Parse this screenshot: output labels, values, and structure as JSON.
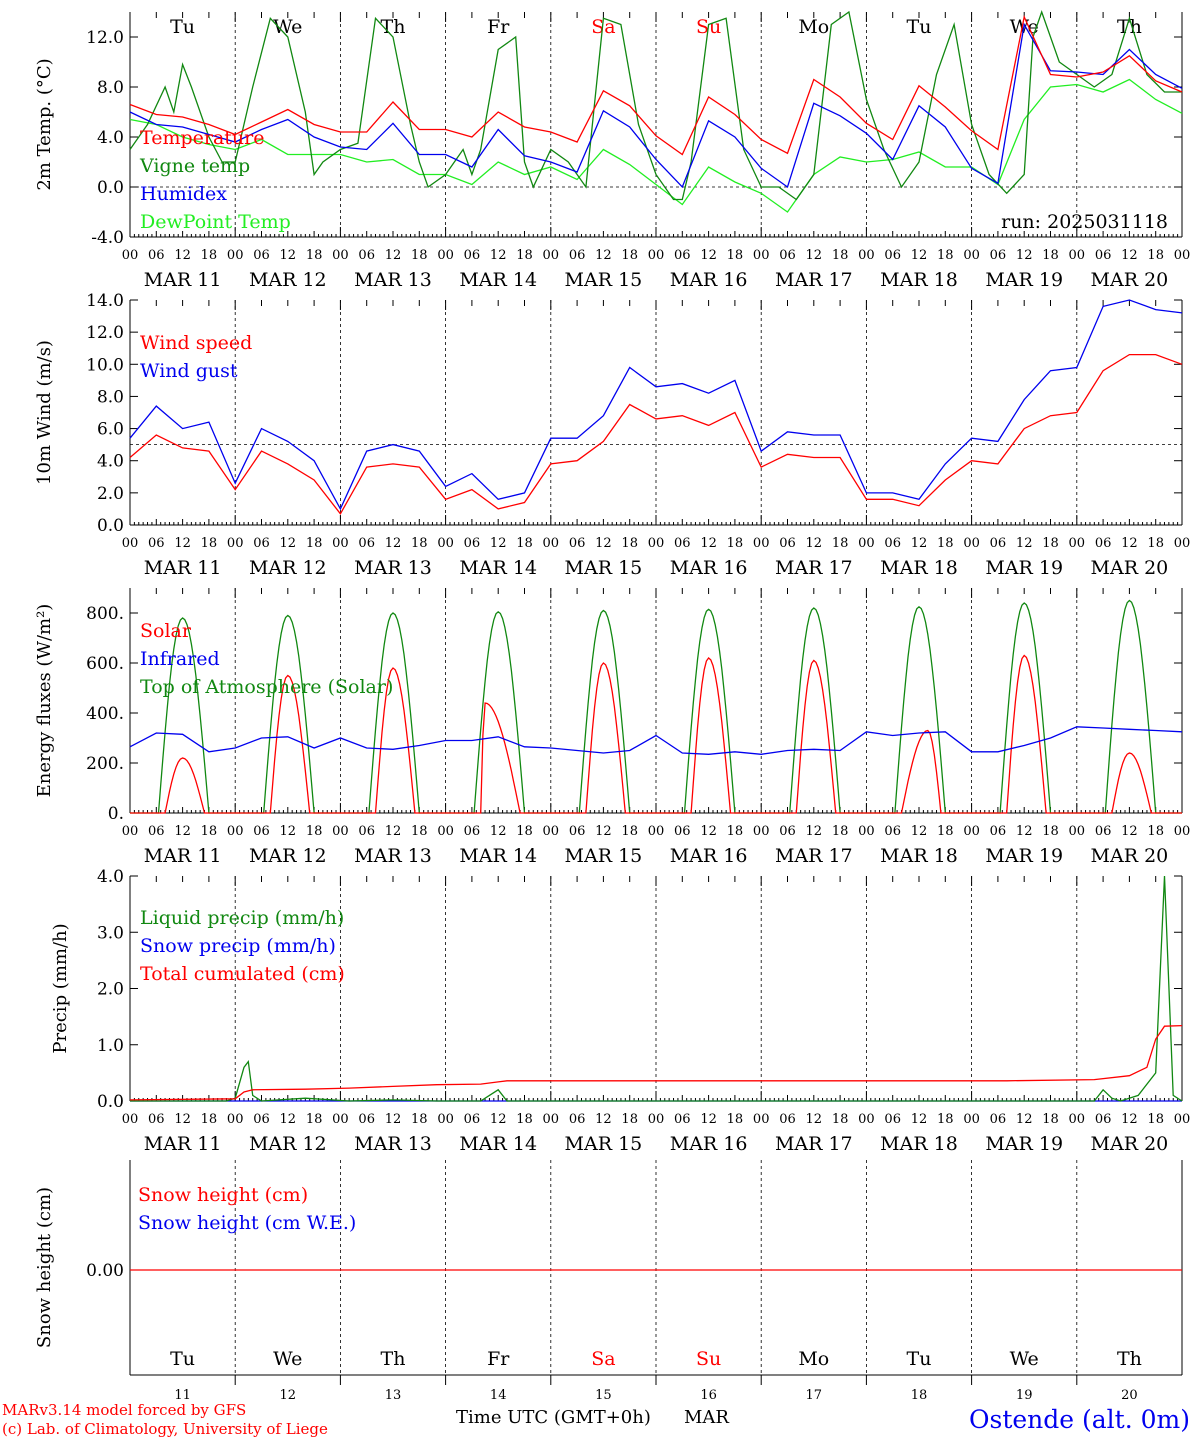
{
  "footer": {
    "model_line": "MARv3.14 model forced by GFS",
    "lab_line": "(c) Lab. of Climatology, University of Liege",
    "time_label": "Time UTC (GMT+0h)",
    "month_label": "MAR",
    "station": "Ostende (alt. 0m)"
  },
  "colors": {
    "red": "#ff0000",
    "green": "#118811",
    "blue": "#0000ee",
    "lightgreen": "#22ee22",
    "black": "#000000"
  },
  "days": {
    "hour_labels": [
      "00",
      "06",
      "12",
      "18"
    ],
    "last_hour_label": "00",
    "dates": [
      "MAR 11",
      "MAR 12",
      "MAR 13",
      "MAR 14",
      "MAR 15",
      "MAR 16",
      "MAR 17",
      "MAR 18",
      "MAR 19",
      "MAR 20"
    ],
    "weekdays": [
      "Tu",
      "We",
      "Th",
      "Fr",
      "Sa",
      "Su",
      "Mo",
      "Tu",
      "We",
      "Th"
    ],
    "weekend_flags": [
      false,
      false,
      false,
      false,
      true,
      true,
      false,
      false,
      false,
      false
    ],
    "day_numbers": [
      "11",
      "12",
      "13",
      "14",
      "15",
      "16",
      "17",
      "18",
      "19",
      "20"
    ]
  },
  "chart_data": [
    {
      "type": "line",
      "panel": "temperature",
      "ylabel": "2m Temp. (°C)",
      "ylim": [
        -4,
        14
      ],
      "yticks": [
        "-4.0",
        "0.0",
        "4.0",
        "8.0",
        "12.0"
      ],
      "yticks_values": [
        -4,
        0,
        4,
        8,
        12
      ],
      "ref_line": 0,
      "run_label": "run: 2025031118",
      "x_unit": "hours since 2025-03-11 00 UTC",
      "series": [
        {
          "name": "Temperature",
          "color": "red",
          "width": 1.6,
          "x": [
            0,
            6,
            12,
            18,
            24,
            30,
            36,
            42,
            48,
            54,
            60,
            66,
            72,
            78,
            84,
            90,
            96,
            102,
            108,
            114,
            120,
            126,
            132,
            138,
            144,
            150,
            156,
            162,
            168,
            174,
            180,
            186,
            192,
            198,
            204,
            210,
            216,
            222,
            228,
            234,
            240
          ],
          "y": [
            6.6,
            5.8,
            5.6,
            5.0,
            4.2,
            5.2,
            6.2,
            5.0,
            4.4,
            4.4,
            6.8,
            4.6,
            4.6,
            4.0,
            6.0,
            4.8,
            4.4,
            3.6,
            7.7,
            6.5,
            4.1,
            2.6,
            7.2,
            5.8,
            3.8,
            2.7,
            8.6,
            7.2,
            5.1,
            3.8,
            8.1,
            6.4,
            4.5,
            3.0,
            13.6,
            9.0,
            8.8,
            9.2,
            10.5,
            8.5,
            7.6
          ]
        },
        {
          "name": "Vigne temp",
          "color": "green",
          "width": 1.0,
          "x": [
            0,
            4,
            8,
            10,
            12,
            14,
            18,
            21,
            24,
            28,
            32,
            36,
            40,
            42,
            44,
            48,
            52,
            56,
            60,
            64,
            66,
            68,
            72,
            76,
            78,
            80,
            84,
            88,
            90,
            92,
            96,
            100,
            104,
            108,
            112,
            116,
            120,
            124,
            126,
            128,
            132,
            136,
            140,
            144,
            148,
            152,
            156,
            160,
            164,
            168,
            172,
            176,
            180,
            184,
            188,
            192,
            196,
            200,
            204,
            206,
            208,
            212,
            216,
            220,
            224,
            228,
            232,
            236,
            240
          ],
          "y": [
            3,
            5,
            8,
            6,
            9.8,
            8,
            4,
            2,
            2,
            8,
            13.5,
            12,
            6,
            1,
            2,
            3,
            3.5,
            13.5,
            12,
            5,
            2,
            0,
            1,
            3,
            1,
            3,
            11,
            12,
            2,
            0,
            3,
            2,
            0,
            13.5,
            13,
            5,
            1,
            -1,
            -1,
            2,
            13,
            13.5,
            3,
            0,
            0,
            -1,
            1,
            13,
            14,
            7,
            3,
            0,
            2,
            9,
            13,
            5,
            1,
            -0.5,
            1,
            12,
            14,
            10,
            9,
            8,
            9,
            13.5,
            9,
            7.6,
            7.6
          ]
        },
        {
          "name": "Humidex",
          "color": "blue",
          "width": 1.0,
          "x": [
            0,
            6,
            12,
            18,
            24,
            30,
            36,
            42,
            48,
            54,
            60,
            66,
            72,
            78,
            84,
            90,
            96,
            102,
            108,
            114,
            120,
            126,
            132,
            138,
            144,
            150,
            156,
            162,
            168,
            174,
            180,
            186,
            192,
            198,
            204,
            210,
            216,
            222,
            228,
            234,
            240
          ],
          "y": [
            6.0,
            5.0,
            4.8,
            4.2,
            3.6,
            4.6,
            5.4,
            4.0,
            3.2,
            3.0,
            5.1,
            2.6,
            2.6,
            1.6,
            4.6,
            2.5,
            2.0,
            1.2,
            6.1,
            4.8,
            2.2,
            0.0,
            5.3,
            4.0,
            1.5,
            0.0,
            6.7,
            5.7,
            4.3,
            2.2,
            6.5,
            4.8,
            1.5,
            0.3,
            13.0,
            9.3,
            9.2,
            9.0,
            11.0,
            9.0,
            7.9
          ]
        },
        {
          "name": "DewPoint Temp",
          "color": "lightgreen",
          "width": 1.0,
          "x": [
            0,
            6,
            12,
            18,
            24,
            30,
            36,
            42,
            48,
            54,
            60,
            66,
            72,
            78,
            84,
            90,
            96,
            102,
            108,
            114,
            120,
            126,
            132,
            138,
            144,
            150,
            156,
            162,
            168,
            174,
            180,
            186,
            192,
            198,
            204,
            210,
            216,
            222,
            228,
            234,
            240
          ],
          "y": [
            5.4,
            5.0,
            4.0,
            3.4,
            3.0,
            3.8,
            2.6,
            2.6,
            2.6,
            2.0,
            2.2,
            1.0,
            1.0,
            0.2,
            2.0,
            1.0,
            1.6,
            0.6,
            3.0,
            1.8,
            0.2,
            -1.4,
            1.6,
            0.4,
            -0.5,
            -2.0,
            1.0,
            2.4,
            2.0,
            2.2,
            2.8,
            1.6,
            1.6,
            0.2,
            5.4,
            8.0,
            8.2,
            7.6,
            8.6,
            7.0,
            5.9
          ]
        }
      ]
    },
    {
      "type": "line",
      "panel": "wind",
      "ylabel": "10m Wind (m/s)",
      "ylim": [
        0,
        14
      ],
      "yticks": [
        "0.0",
        "2.0",
        "4.0",
        "6.0",
        "8.0",
        "10.0",
        "12.0",
        "14.0"
      ],
      "yticks_values": [
        0,
        2,
        4,
        6,
        8,
        10,
        12,
        14
      ],
      "ref_line": 5,
      "x_unit": "hours since 2025-03-11 00 UTC",
      "series": [
        {
          "name": "Wind speed",
          "color": "red",
          "width": 1.6,
          "x": [
            0,
            6,
            12,
            18,
            24,
            30,
            36,
            42,
            48,
            54,
            60,
            66,
            72,
            78,
            84,
            90,
            96,
            102,
            108,
            114,
            120,
            126,
            132,
            138,
            144,
            150,
            156,
            162,
            168,
            174,
            180,
            186,
            192,
            198,
            204,
            210,
            216,
            222,
            228,
            234,
            240
          ],
          "y": [
            4.2,
            5.6,
            4.8,
            4.6,
            2.2,
            4.6,
            3.8,
            2.8,
            0.7,
            3.6,
            3.8,
            3.6,
            1.6,
            2.2,
            1.0,
            1.4,
            3.8,
            4.0,
            5.2,
            7.5,
            6.6,
            6.8,
            6.2,
            7.0,
            3.6,
            4.4,
            4.2,
            4.2,
            1.6,
            1.6,
            1.2,
            2.8,
            4.0,
            3.8,
            6.0,
            6.8,
            7.0,
            9.6,
            10.6,
            10.6,
            10.0
          ]
        },
        {
          "name": "Wind gust",
          "color": "blue",
          "width": 1.0,
          "x": [
            0,
            6,
            12,
            18,
            24,
            30,
            36,
            42,
            48,
            54,
            60,
            66,
            72,
            78,
            84,
            90,
            96,
            102,
            108,
            114,
            120,
            126,
            132,
            138,
            144,
            150,
            156,
            162,
            168,
            174,
            180,
            186,
            192,
            198,
            204,
            210,
            216,
            222,
            228,
            234,
            240
          ],
          "y": [
            5.4,
            7.4,
            6.0,
            6.4,
            2.6,
            6.0,
            5.2,
            4.0,
            1.0,
            4.6,
            5.0,
            4.6,
            2.4,
            3.2,
            1.6,
            2.0,
            5.4,
            5.4,
            6.8,
            9.8,
            8.6,
            8.8,
            8.2,
            9.0,
            4.6,
            5.8,
            5.6,
            5.6,
            2.0,
            2.0,
            1.6,
            3.8,
            5.4,
            5.2,
            7.8,
            9.6,
            9.8,
            13.6,
            14.0,
            13.4,
            13.2
          ]
        }
      ]
    },
    {
      "type": "line",
      "panel": "radiation",
      "ylabel": "Energy fluxes (W/m²)",
      "ylim": [
        0,
        900
      ],
      "yticks": [
        "0.",
        "200.",
        "400.",
        "600.",
        "800."
      ],
      "yticks_values": [
        0,
        200,
        400,
        600,
        800
      ],
      "x_unit": "hours since 2025-03-11 00 UTC",
      "series": [
        {
          "name": "Solar",
          "color": "red",
          "width": 1.6,
          "day_peaks": [
            220,
            550,
            580,
            440,
            600,
            620,
            610,
            330,
            630,
            240
          ],
          "day_peak_hours": [
            12,
            12,
            12,
            9,
            12,
            12,
            12,
            14,
            12,
            12
          ]
        },
        {
          "name": "Infrared",
          "color": "blue",
          "width": 1.6,
          "x": [
            0,
            6,
            12,
            18,
            24,
            30,
            36,
            42,
            48,
            54,
            60,
            66,
            72,
            78,
            84,
            90,
            96,
            102,
            108,
            114,
            120,
            126,
            132,
            138,
            144,
            150,
            156,
            162,
            168,
            174,
            180,
            186,
            192,
            198,
            204,
            210,
            216,
            222,
            228,
            234,
            240
          ],
          "y": [
            265,
            320,
            315,
            245,
            260,
            300,
            305,
            260,
            300,
            260,
            255,
            270,
            290,
            290,
            305,
            265,
            260,
            250,
            240,
            250,
            310,
            240,
            235,
            245,
            235,
            250,
            255,
            250,
            325,
            310,
            320,
            325,
            245,
            245,
            270,
            300,
            345,
            340,
            335,
            330,
            325
          ]
        },
        {
          "name": "Top of Atmosphere (Solar)",
          "color": "green",
          "width": 1.0,
          "day_peaks": [
            780,
            790,
            800,
            805,
            810,
            815,
            820,
            825,
            840,
            850
          ],
          "day_peak_hours": [
            12,
            12,
            12,
            12,
            12,
            12,
            12,
            12,
            12,
            12
          ]
        }
      ]
    },
    {
      "type": "line",
      "panel": "precipitation",
      "ylabel": "Precip (mm/h)",
      "ylim": [
        0,
        4
      ],
      "yticks": [
        "0.0",
        "1.0",
        "2.0",
        "3.0",
        "4.0"
      ],
      "yticks_values": [
        0,
        1,
        2,
        3,
        4
      ],
      "x_unit": "hours since 2025-03-11 00 UTC",
      "series": [
        {
          "name": "Liquid precip (mm/h)",
          "color": "green",
          "width": 1.0,
          "x": [
            0,
            20,
            22,
            24,
            26,
            27,
            28,
            30,
            40,
            50,
            60,
            70,
            80,
            82,
            84,
            86,
            90,
            100,
            180,
            200,
            220,
            222,
            224,
            226,
            230,
            234,
            236,
            238,
            240
          ],
          "y": [
            0,
            0,
            0,
            0.05,
            0.6,
            0.7,
            0.1,
            0,
            0.05,
            0,
            0.02,
            0,
            0,
            0.1,
            0.2,
            0,
            0,
            0,
            0,
            0,
            0,
            0.2,
            0.05,
            0,
            0.1,
            0.5,
            4.0,
            0.1,
            0
          ]
        },
        {
          "name": "Snow precip (mm/h)",
          "color": "blue",
          "width": 1.0,
          "x": [
            0,
            240
          ],
          "y": [
            0,
            0
          ]
        },
        {
          "name": "Total cumulated (cm)",
          "color": "red",
          "width": 1.6,
          "x": [
            0,
            24,
            26,
            28,
            40,
            50,
            60,
            70,
            80,
            84,
            86,
            100,
            150,
            200,
            220,
            228,
            232,
            234,
            236,
            240
          ],
          "y": [
            0.02,
            0.04,
            0.16,
            0.2,
            0.21,
            0.23,
            0.26,
            0.29,
            0.3,
            0.34,
            0.36,
            0.36,
            0.36,
            0.36,
            0.38,
            0.45,
            0.6,
            1.1,
            1.33,
            1.34
          ]
        }
      ]
    },
    {
      "type": "line",
      "panel": "snow",
      "ylabel": "Snow height (cm)",
      "ytick_label": "0.00",
      "x_unit": "hours since 2025-03-11 00 UTC",
      "series": [
        {
          "name": "Snow height (cm)",
          "color": "red",
          "width": 1.3,
          "x": [
            0,
            240
          ],
          "y": [
            0,
            0
          ]
        },
        {
          "name": "Snow height (cm W.E.)",
          "color": "blue",
          "width": 1.0,
          "x": [
            0,
            240
          ],
          "y": [
            0,
            0
          ]
        }
      ]
    }
  ]
}
